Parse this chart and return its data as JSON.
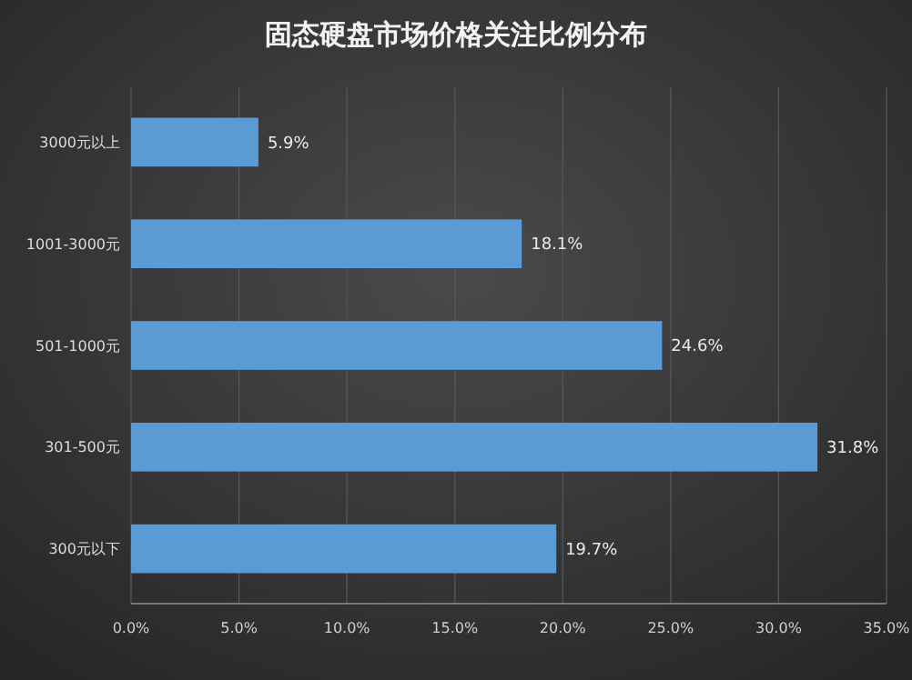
{
  "chart_data": {
    "type": "bar",
    "orientation": "horizontal",
    "title": "固态硬盘市场价格关注比例分布",
    "categories": [
      "3000元以上",
      "1001-3000元",
      "501-1000元",
      "301-500元",
      "300元以下"
    ],
    "values": [
      5.9,
      18.1,
      24.6,
      31.8,
      19.7
    ],
    "value_labels": [
      "5.9%",
      "18.1%",
      "24.6%",
      "31.8%",
      "19.7%"
    ],
    "color": "#5b9bd5",
    "xlim": [
      0,
      35
    ],
    "xticks": [
      {
        "value": 0,
        "label": "0.0%"
      },
      {
        "value": 5,
        "label": "5.0%"
      },
      {
        "value": 10,
        "label": "10.0%"
      },
      {
        "value": 15,
        "label": "15.0%"
      },
      {
        "value": 20,
        "label": "20.0%"
      },
      {
        "value": 25,
        "label": "25.0%"
      },
      {
        "value": 30,
        "label": "30.0%"
      },
      {
        "value": 35,
        "label": "35.0%"
      }
    ],
    "grid": "x"
  }
}
